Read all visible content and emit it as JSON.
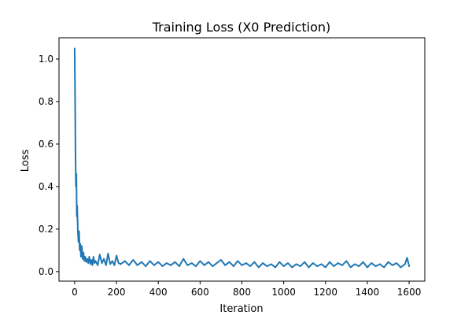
{
  "chart_data": {
    "type": "line",
    "title": "Training Loss (X0 Prediction)",
    "xlabel": "Iteration",
    "ylabel": "Loss",
    "xlim": [
      -75,
      1675
    ],
    "ylim": [
      -0.045,
      1.1
    ],
    "xticks": [
      0,
      200,
      400,
      600,
      800,
      1000,
      1200,
      1400,
      1600
    ],
    "yticks": [
      0.0,
      0.2,
      0.4,
      0.6,
      0.8,
      1.0
    ],
    "grid": false,
    "legend": "none",
    "series": [
      {
        "color": "#1f77b4",
        "x": [
          0,
          2,
          4,
          6,
          8,
          10,
          12,
          15,
          18,
          21,
          24,
          27,
          30,
          34,
          38,
          42,
          46,
          50,
          55,
          60,
          65,
          70,
          75,
          80,
          85,
          90,
          95,
          100,
          110,
          120,
          130,
          140,
          150,
          160,
          170,
          180,
          190,
          200,
          210,
          220,
          240,
          260,
          280,
          300,
          320,
          340,
          360,
          380,
          400,
          420,
          440,
          460,
          480,
          500,
          520,
          540,
          560,
          580,
          600,
          620,
          640,
          660,
          680,
          700,
          720,
          740,
          760,
          780,
          800,
          820,
          840,
          860,
          880,
          900,
          920,
          940,
          960,
          980,
          1000,
          1020,
          1040,
          1060,
          1080,
          1100,
          1120,
          1140,
          1160,
          1180,
          1200,
          1220,
          1240,
          1260,
          1280,
          1300,
          1320,
          1340,
          1360,
          1380,
          1400,
          1420,
          1440,
          1460,
          1480,
          1500,
          1520,
          1540,
          1560,
          1580,
          1590,
          1600
        ],
        "y": [
          1.05,
          0.8,
          0.55,
          0.4,
          0.46,
          0.26,
          0.31,
          0.2,
          0.14,
          0.19,
          0.1,
          0.13,
          0.07,
          0.12,
          0.06,
          0.09,
          0.05,
          0.07,
          0.045,
          0.06,
          0.04,
          0.07,
          0.035,
          0.055,
          0.03,
          0.07,
          0.04,
          0.05,
          0.03,
          0.08,
          0.04,
          0.06,
          0.03,
          0.085,
          0.035,
          0.05,
          0.03,
          0.075,
          0.04,
          0.035,
          0.05,
          0.03,
          0.055,
          0.03,
          0.045,
          0.025,
          0.05,
          0.03,
          0.045,
          0.025,
          0.04,
          0.03,
          0.045,
          0.025,
          0.06,
          0.03,
          0.04,
          0.025,
          0.05,
          0.03,
          0.045,
          0.025,
          0.04,
          0.055,
          0.03,
          0.045,
          0.025,
          0.05,
          0.03,
          0.04,
          0.025,
          0.045,
          0.02,
          0.04,
          0.025,
          0.035,
          0.02,
          0.045,
          0.025,
          0.04,
          0.02,
          0.035,
          0.025,
          0.045,
          0.02,
          0.04,
          0.025,
          0.035,
          0.02,
          0.045,
          0.025,
          0.04,
          0.03,
          0.05,
          0.02,
          0.035,
          0.025,
          0.045,
          0.02,
          0.04,
          0.025,
          0.035,
          0.02,
          0.045,
          0.03,
          0.04,
          0.02,
          0.035,
          0.065,
          0.025
        ]
      }
    ]
  }
}
